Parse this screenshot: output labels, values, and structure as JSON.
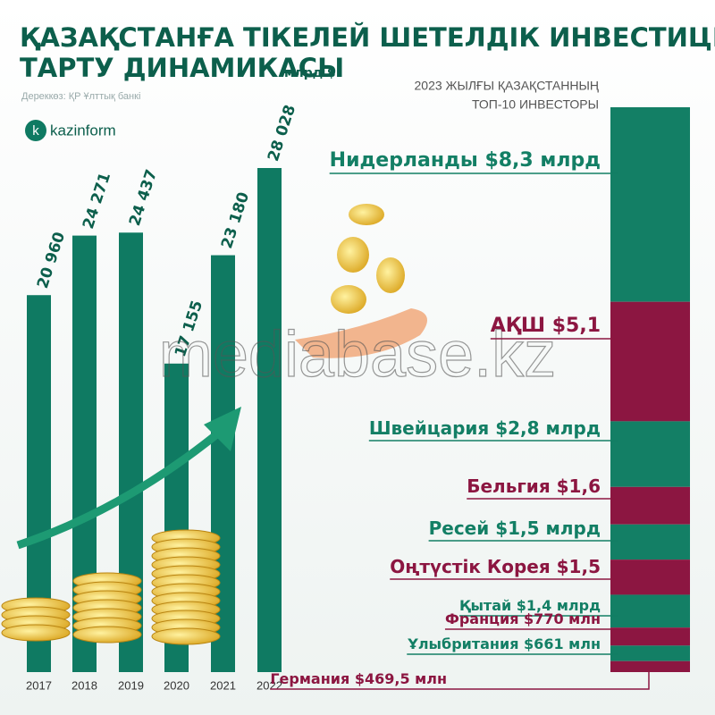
{
  "chart_data": [
    {
      "type": "bar",
      "title": [
        "ҚАЗАҚСТАНҒА ТІКЕЛЕЙ ШЕТЕЛДІК ИНВЕСТИЦИЯЛАРДЫ",
        "ТАРТУ ДИНАМИКАСЫ"
      ],
      "unit": "млрд $",
      "source": "Дереккөз: ҚР Ұлттық банкі",
      "logo": "kazinform",
      "watermark": "mediabase.kz",
      "categories": [
        "2017",
        "2018",
        "2019",
        "2020",
        "2021",
        "2022"
      ],
      "values": [
        20960,
        24271,
        24437,
        17155,
        23180,
        28028
      ],
      "value_labels": [
        "20 960",
        "24 271",
        "24 437",
        "17 155",
        "23 180",
        "28 028"
      ],
      "color": "#0f7a62"
    },
    {
      "type": "stacked-bar",
      "title": [
        "2023 ЖЫЛҒЫ ҚАЗАҚСТАННЫҢ",
        "ТОП-10 ИНВЕСТОРЫ"
      ],
      "categories": [
        "Нидерланды",
        "АҚШ",
        "Швейцария",
        "Бельгия",
        "Ресей",
        "Оңтүстік Корея",
        "Қытай",
        "Франция",
        "Ұлыбритания",
        "Германия"
      ],
      "values": [
        8.3,
        5.1,
        2.8,
        1.6,
        1.5,
        1.5,
        1.4,
        0.77,
        0.661,
        0.4695
      ],
      "value_labels": [
        "$8,3 млрд",
        "$5,1",
        "$2,8 млрд",
        "$1,6",
        "$1,5 млрд",
        "$1,5",
        "$1,4 млрд",
        "$770 млн",
        "$661 млн",
        "$469,5 млн"
      ],
      "colors": [
        "#137f65",
        "#8c1641",
        "#137f65",
        "#8c1641",
        "#137f65",
        "#8c1641",
        "#137f65",
        "#8c1641",
        "#137f65",
        "#8c1641"
      ]
    }
  ]
}
